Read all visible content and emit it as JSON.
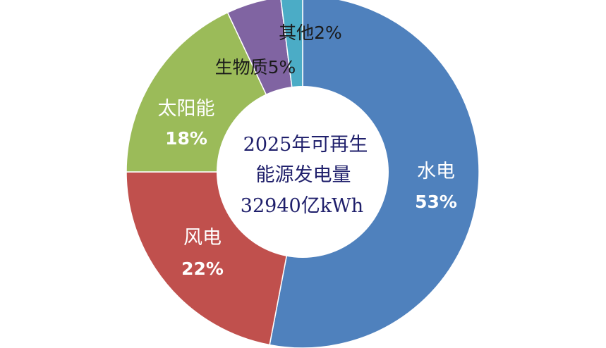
{
  "chart_data": {
    "type": "pie",
    "donut": true,
    "center_label": [
      "2025年可再生",
      "能源发电量",
      "32940亿kWh"
    ],
    "slices": [
      {
        "name": "水电",
        "percent_label": "53%",
        "value": 53,
        "color": "#4f81bd",
        "label_color": "#ffffff"
      },
      {
        "name": "风电",
        "percent_label": "22%",
        "value": 22,
        "color": "#c0504d",
        "label_color": "#ffffff"
      },
      {
        "name": "太阳能",
        "percent_label": "18%",
        "value": 18,
        "color": "#9bbb59",
        "label_color": "#ffffff"
      },
      {
        "name": "生物质",
        "percent_label": "5%",
        "value": 5,
        "color": "#8064a2",
        "label_color": "#1a1a1a",
        "inline": true
      },
      {
        "name": "其他",
        "percent_label": "2%",
        "value": 2,
        "color": "#4bacc6",
        "label_color": "#1a1a1a",
        "inline": true
      }
    ]
  }
}
